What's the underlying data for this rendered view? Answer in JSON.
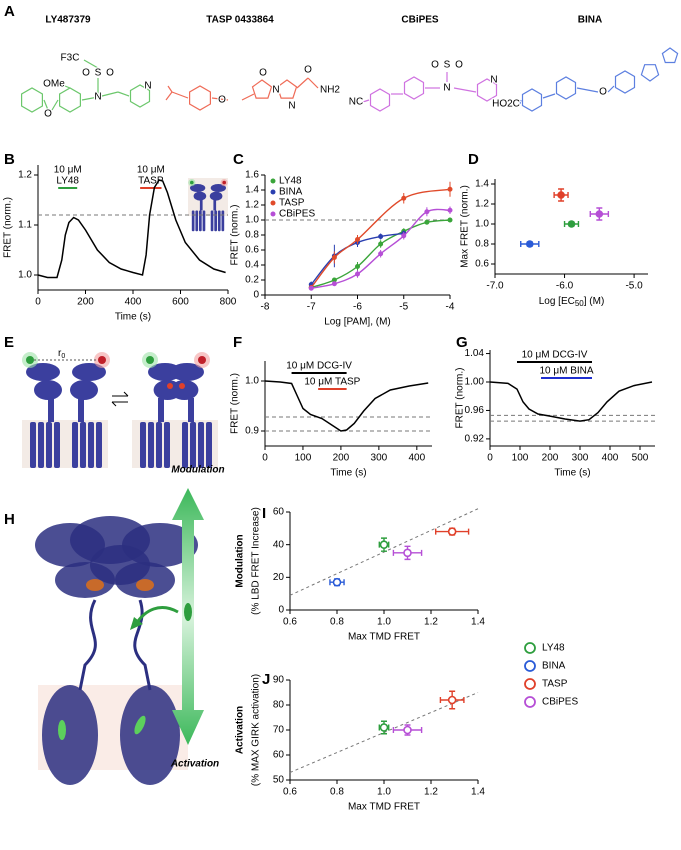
{
  "panel_labels": [
    "A",
    "B",
    "C",
    "D",
    "E",
    "F",
    "G",
    "H",
    "I",
    "J"
  ],
  "compounds": [
    {
      "name": "LY487379",
      "color": "#6cc76c",
      "atoms": [
        "F3C",
        "O",
        "S",
        "O",
        "N",
        "N",
        "OMe",
        "O"
      ]
    },
    {
      "name": "TASP 0433864",
      "color": "#ef6b57",
      "atoms": [
        "O",
        "O",
        "N",
        "N",
        "O",
        "NH2"
      ]
    },
    {
      "name": "CBiPES",
      "color": "#cf72e0",
      "atoms": [
        "NC",
        "O",
        "S",
        "O",
        "N",
        "N"
      ]
    },
    {
      "name": "BINA",
      "color": "#5c7fe0",
      "atoms": [
        "HO2C",
        "O"
      ]
    }
  ],
  "diagram_e": {
    "r": "r",
    "sub": "0"
  },
  "panel_h": {
    "top": "Modulation",
    "bottom": "Activation"
  },
  "legend": [
    {
      "name": "LY48",
      "color": "#2e9e3e"
    },
    {
      "name": "BINA",
      "color": "#2a5bd7"
    },
    {
      "name": "TASP",
      "color": "#e0402a"
    },
    {
      "name": "CBiPES",
      "color": "#b64fd6"
    }
  ],
  "chart_data": [
    {
      "type": "line",
      "ylabel": "FRET (norm.)",
      "xlabel": "Time (s)",
      "xlim": [
        0,
        800
      ],
      "ylim": [
        0.97,
        1.22
      ],
      "xticks": [
        0,
        200,
        400,
        600,
        800
      ],
      "yticks": [
        {
          "value": 1,
          "label": "1.0"
        },
        {
          "value": 1.1,
          "label": "1.1"
        },
        {
          "value": 1.2,
          "label": "1.2"
        }
      ],
      "ref_lines": [
        1.12
      ],
      "stimuli": [
        {
          "lines": [
            "10 μM",
            "LY48"
          ],
          "color": "#2e9e3e",
          "start": 85,
          "end": 165
        },
        {
          "lines": [
            "10 μM",
            "TASP"
          ],
          "color": "#e0402a",
          "start": 430,
          "end": 520
        }
      ],
      "series": [
        {
          "color": "#000000",
          "x": [
            0,
            40,
            80,
            100,
            115,
            130,
            150,
            170,
            200,
            250,
            300,
            350,
            400,
            440,
            455,
            470,
            490,
            510,
            525,
            545,
            580,
            620,
            680,
            740,
            790
          ],
          "values": [
            1.0,
            0.995,
            0.995,
            1.03,
            1.08,
            1.105,
            1.115,
            1.11,
            1.09,
            1.05,
            1.025,
            1.012,
            1.005,
            1.0,
            1.04,
            1.12,
            1.175,
            1.19,
            1.188,
            1.165,
            1.11,
            1.065,
            1.03,
            1.012,
            1.005
          ]
        }
      ]
    },
    {
      "type": "dose_response",
      "ylabel": "FRET (norm.)",
      "xlabel": "Log [PAM], (M)",
      "xlim": [
        -8,
        -4
      ],
      "ylim": [
        0,
        1.6
      ],
      "xticks": [
        -8,
        -7,
        -6,
        -5,
        -4
      ],
      "yticks": [
        0,
        0.2,
        0.4,
        0.6,
        0.8,
        {
          "value": 1,
          "label": "1.0"
        },
        1.2,
        1.4,
        1.6
      ],
      "ref_lines": [
        1.0
      ],
      "legend": "top-left",
      "series": [
        {
          "name": "LY48",
          "color": "#3aa53a",
          "x": [
            -7,
            -6.5,
            -6,
            -5.5,
            -5,
            -4.5,
            -4
          ],
          "values": [
            0.1,
            0.2,
            0.38,
            0.68,
            0.85,
            0.97,
            1.0
          ],
          "errors": [
            0.03,
            0.03,
            0.06,
            0.05,
            0.04,
            0.03,
            0.03
          ]
        },
        {
          "name": "BINA",
          "color": "#2a3fb0",
          "x": [
            -7,
            -6.5,
            -6,
            -5.5,
            -5
          ],
          "values": [
            0.14,
            0.52,
            0.7,
            0.78,
            0.82
          ],
          "errors": [
            0.04,
            0.15,
            0.06,
            0.04,
            0.04
          ]
        },
        {
          "name": "TASP",
          "color": "#e04a2a",
          "x": [
            -7,
            -6.5,
            -6,
            -5,
            -4
          ],
          "values": [
            0.1,
            0.5,
            0.74,
            1.29,
            1.41
          ],
          "errors": [
            0.03,
            0.08,
            0.06,
            0.07,
            0.1
          ]
        },
        {
          "name": "CBiPES",
          "color": "#b64fd6",
          "x": [
            -7,
            -6.5,
            -6,
            -5.5,
            -5,
            -4.5,
            -4
          ],
          "values": [
            0.09,
            0.15,
            0.28,
            0.55,
            0.79,
            1.11,
            1.13
          ],
          "errors": [
            0.02,
            0.03,
            0.05,
            0.05,
            0.05,
            0.06,
            0.05
          ]
        }
      ]
    },
    {
      "type": "scatter",
      "ylabel": "Max FRET (norm.)",
      "xlabel": "Log [EC",
      "xlabel_sub": "50",
      "xlabel_end": "] (M)",
      "xlim": [
        -7,
        -4.8
      ],
      "ylim": [
        0.5,
        1.45
      ],
      "xticks": [
        {
          "value": -7,
          "label": "-7.0"
        },
        {
          "value": -6,
          "label": "-6.0"
        },
        {
          "value": -5,
          "label": "-5.0"
        }
      ],
      "yticks": [
        0.6,
        0.8,
        {
          "value": 1,
          "label": "1.0"
        },
        1.2,
        1.4
      ],
      "marker": "filled",
      "series": [
        {
          "color": "#2a5bd7",
          "x": [
            -6.5
          ],
          "values": [
            0.8
          ],
          "errors": [
            0.02
          ],
          "xerrors": [
            0.13
          ]
        },
        {
          "color": "#2e9e3e",
          "x": [
            -5.9
          ],
          "values": [
            1.0
          ],
          "errors": [
            0.02
          ],
          "xerrors": [
            0.1
          ]
        },
        {
          "color": "#e0402a",
          "x": [
            -6.05
          ],
          "values": [
            1.29
          ],
          "errors": [
            0.06
          ],
          "xerrors": [
            0.1
          ]
        },
        {
          "color": "#b64fd6",
          "x": [
            -5.5
          ],
          "values": [
            1.1
          ],
          "errors": [
            0.06
          ],
          "xerrors": [
            0.13
          ]
        }
      ]
    },
    {
      "type": "line",
      "ylabel": "FRET (norm.)",
      "xlabel": "Time (s)",
      "xlim": [
        0,
        440
      ],
      "ylim": [
        0.87,
        1.04
      ],
      "xticks": [
        0,
        100,
        200,
        300,
        400
      ],
      "yticks": [
        0.9,
        {
          "value": 1,
          "label": "1.0"
        }
      ],
      "ref_lines": [
        0.928,
        0.9
      ],
      "stimuli": [
        {
          "lines": [
            "10 μM DCG-IV"
          ],
          "color": "#000000",
          "start": 70,
          "end": 215
        },
        {
          "lines": [
            "10 μM TASP"
          ],
          "color": "#e0402a",
          "start": 140,
          "end": 215
        }
      ],
      "series": [
        {
          "color": "#000000",
          "x": [
            0,
            40,
            70,
            85,
            100,
            120,
            150,
            180,
            200,
            215,
            235,
            260,
            290,
            330,
            380,
            430
          ],
          "values": [
            1.0,
            0.998,
            0.995,
            0.97,
            0.945,
            0.933,
            0.925,
            0.91,
            0.9,
            0.902,
            0.915,
            0.94,
            0.965,
            0.982,
            0.99,
            0.996
          ]
        }
      ]
    },
    {
      "type": "line",
      "ylabel": "FRET (norm.)",
      "xlabel": "Time (s)",
      "xlim": [
        0,
        550
      ],
      "ylim": [
        0.91,
        1.045
      ],
      "xticks": [
        0,
        100,
        200,
        300,
        400,
        500
      ],
      "yticks": [
        0.92,
        0.96,
        {
          "value": 1,
          "label": "1.00"
        },
        1.04
      ],
      "ref_lines": [
        0.953,
        0.945
      ],
      "stimuli": [
        {
          "lines": [
            "10 μM DCG-IV"
          ],
          "color": "#000000",
          "start": 90,
          "end": 340
        },
        {
          "lines": [
            "10 μM BINA"
          ],
          "color": "#1f2fd0",
          "start": 170,
          "end": 340
        }
      ],
      "series": [
        {
          "color": "#000000",
          "x": [
            0,
            60,
            90,
            110,
            130,
            160,
            200,
            250,
            300,
            330,
            360,
            390,
            430,
            480,
            540
          ],
          "values": [
            1.0,
            0.998,
            0.99,
            0.972,
            0.962,
            0.955,
            0.952,
            0.948,
            0.945,
            0.947,
            0.957,
            0.972,
            0.987,
            0.995,
            1.0
          ]
        }
      ]
    },
    {
      "type": "scatter",
      "ylabel": "Modulation",
      "ylabel_sub": "(% LBD FRET Increase)",
      "xlabel": "Max TMD FRET",
      "xlim": [
        0.6,
        1.4
      ],
      "ylim": [
        0,
        60
      ],
      "xticks": [
        0.6,
        0.8,
        {
          "value": 1,
          "label": "1.0"
        },
        1.2,
        1.4
      ],
      "yticks": [
        0,
        20,
        40,
        60
      ],
      "marker": "open",
      "fit_line": {
        "x": [
          0.6,
          1.4
        ],
        "values": [
          9,
          62
        ]
      },
      "series": [
        {
          "color": "#2a5bd7",
          "x": [
            0.8
          ],
          "values": [
            17
          ],
          "errors": [
            2
          ],
          "xerrors": [
            0.03
          ]
        },
        {
          "color": "#2e9e3e",
          "x": [
            1.0
          ],
          "values": [
            40
          ],
          "errors": [
            4
          ],
          "xerrors": [
            0.02
          ]
        },
        {
          "color": "#b64fd6",
          "x": [
            1.1
          ],
          "values": [
            35
          ],
          "errors": [
            4
          ],
          "xerrors": [
            0.06
          ]
        },
        {
          "color": "#e0402a",
          "x": [
            1.29
          ],
          "values": [
            48
          ],
          "errors": [
            2
          ],
          "xerrors": [
            0.07
          ]
        }
      ]
    },
    {
      "type": "scatter",
      "ylabel": "Activation",
      "ylabel_sub": "(% MAX GIRK activation)",
      "xlabel": "Max TMD FRET",
      "xlim": [
        0.6,
        1.4
      ],
      "ylim": [
        50,
        90
      ],
      "xticks": [
        0.6,
        0.8,
        {
          "value": 1,
          "label": "1.0"
        },
        1.2,
        1.4
      ],
      "yticks": [
        50,
        60,
        70,
        80,
        90
      ],
      "marker": "open",
      "fit_line": {
        "x": [
          0.6,
          1.4
        ],
        "values": [
          53,
          85
        ]
      },
      "series": [
        {
          "color": "#2e9e3e",
          "x": [
            1.0
          ],
          "values": [
            71
          ],
          "errors": [
            2.5
          ],
          "xerrors": [
            0.02
          ]
        },
        {
          "color": "#b64fd6",
          "x": [
            1.1
          ],
          "values": [
            70
          ],
          "errors": [
            2
          ],
          "xerrors": [
            0.06
          ]
        },
        {
          "color": "#e0402a",
          "x": [
            1.29
          ],
          "values": [
            82
          ],
          "errors": [
            3.5
          ],
          "xerrors": [
            0.05
          ]
        }
      ]
    }
  ]
}
